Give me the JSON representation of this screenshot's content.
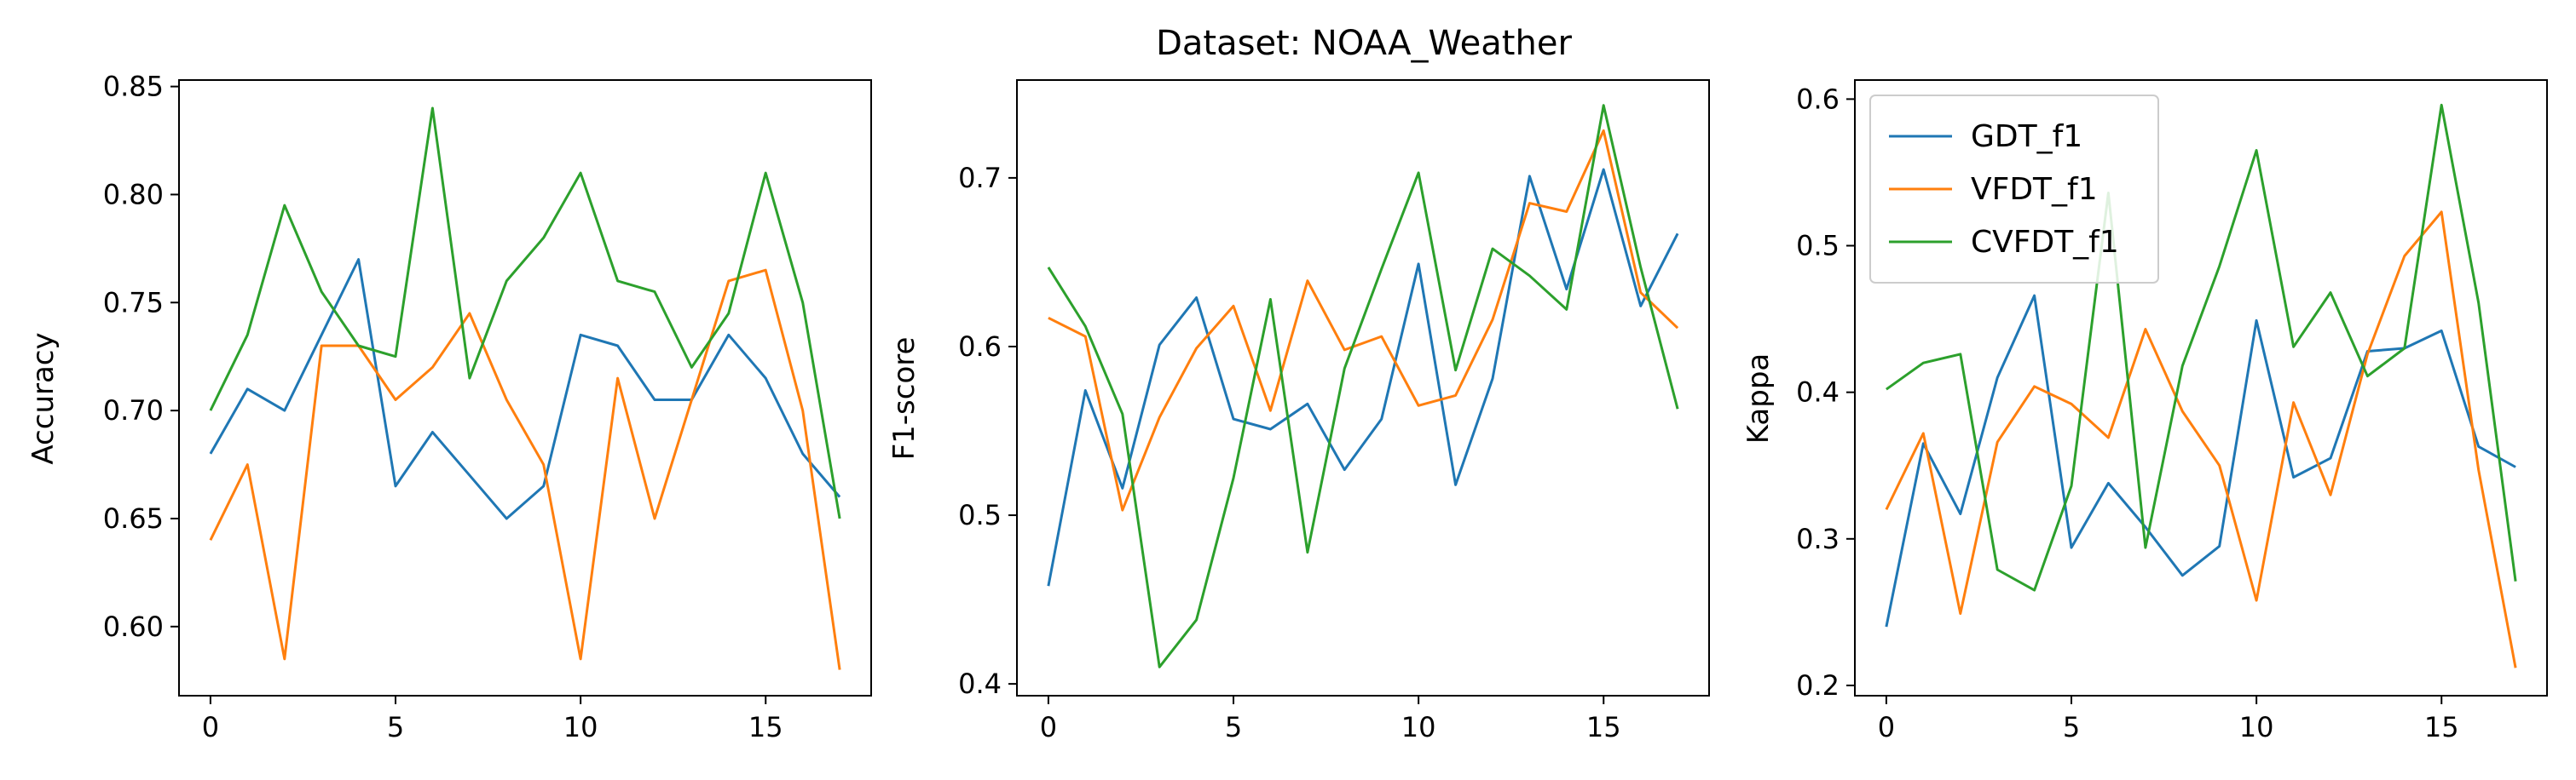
{
  "title": "Dataset: NOAA_Weather",
  "colors": {
    "GDT_f1": "#1f77b4",
    "VFDT_f1": "#ff7f0e",
    "CVFDT_f1": "#2ca02c"
  },
  "chart_data": [
    {
      "type": "line",
      "title": "",
      "xlabel": "",
      "ylabel": "Accuracy",
      "xlim": [
        -0.85,
        17.85
      ],
      "ylim": [
        0.568,
        0.853
      ],
      "xticks": [
        0,
        5,
        10,
        15
      ],
      "yticks": [
        0.6,
        0.65,
        0.7,
        0.75,
        0.8,
        0.85
      ],
      "ytick_labels": [
        "0.60",
        "0.65",
        "0.70",
        "0.75",
        "0.80",
        "0.85"
      ],
      "x": [
        0,
        1,
        2,
        3,
        4,
        5,
        6,
        7,
        8,
        9,
        10,
        11,
        12,
        13,
        14,
        15,
        16,
        17
      ],
      "series": [
        {
          "key": "GDT_f1",
          "values": [
            0.68,
            0.71,
            0.7,
            0.735,
            0.77,
            0.665,
            0.69,
            0.67,
            0.65,
            0.665,
            0.735,
            0.73,
            0.705,
            0.705,
            0.735,
            0.715,
            0.68,
            0.66
          ]
        },
        {
          "key": "VFDT_f1",
          "values": [
            0.64,
            0.675,
            0.585,
            0.73,
            0.73,
            0.705,
            0.72,
            0.745,
            0.705,
            0.675,
            0.585,
            0.715,
            0.65,
            0.705,
            0.76,
            0.765,
            0.7,
            0.58
          ]
        },
        {
          "key": "CVFDT_f1",
          "values": [
            0.7,
            0.735,
            0.795,
            0.755,
            0.73,
            0.725,
            0.84,
            0.715,
            0.76,
            0.78,
            0.81,
            0.76,
            0.755,
            0.72,
            0.745,
            0.81,
            0.75,
            0.65
          ]
        }
      ],
      "legend": null
    },
    {
      "type": "line",
      "title": "Dataset: NOAA_Weather",
      "xlabel": "",
      "ylabel": "F1-score",
      "xlim": [
        -0.85,
        17.85
      ],
      "ylim": [
        0.393,
        0.758
      ],
      "xticks": [
        0,
        5,
        10,
        15
      ],
      "yticks": [
        0.4,
        0.5,
        0.6,
        0.7
      ],
      "ytick_labels": [
        "0.4",
        "0.5",
        "0.6",
        "0.7"
      ],
      "x": [
        0,
        1,
        2,
        3,
        4,
        5,
        6,
        7,
        8,
        9,
        10,
        11,
        12,
        13,
        14,
        15,
        16,
        17
      ],
      "series": [
        {
          "key": "GDT_f1",
          "values": [
            0.458,
            0.574,
            0.516,
            0.601,
            0.629,
            0.557,
            0.551,
            0.566,
            0.527,
            0.557,
            0.649,
            0.518,
            0.581,
            0.701,
            0.634,
            0.705,
            0.624,
            0.667
          ]
        },
        {
          "key": "VFDT_f1",
          "values": [
            0.617,
            0.606,
            0.503,
            0.558,
            0.599,
            0.624,
            0.562,
            0.639,
            0.598,
            0.606,
            0.565,
            0.571,
            0.616,
            0.685,
            0.68,
            0.728,
            0.632,
            0.611
          ]
        },
        {
          "key": "CVFDT_f1",
          "values": [
            0.647,
            0.612,
            0.56,
            0.41,
            0.438,
            0.522,
            0.628,
            0.478,
            0.587,
            0.646,
            0.703,
            0.586,
            0.658,
            0.642,
            0.622,
            0.743,
            0.647,
            0.563
          ]
        }
      ],
      "legend": null
    },
    {
      "type": "line",
      "title": "",
      "xlabel": "",
      "ylabel": "Kappa",
      "xlim": [
        -0.85,
        17.85
      ],
      "ylim": [
        0.193,
        0.613
      ],
      "xticks": [
        0,
        5,
        10,
        15
      ],
      "yticks": [
        0.2,
        0.3,
        0.4,
        0.5,
        0.6
      ],
      "ytick_labels": [
        "0.2",
        "0.3",
        "0.4",
        "0.5",
        "0.6"
      ],
      "x": [
        0,
        1,
        2,
        3,
        4,
        5,
        6,
        7,
        8,
        9,
        10,
        11,
        12,
        13,
        14,
        15,
        16,
        17
      ],
      "series": [
        {
          "key": "GDT_f1",
          "values": [
            0.24,
            0.365,
            0.317,
            0.41,
            0.466,
            0.294,
            0.338,
            0.308,
            0.275,
            0.295,
            0.449,
            0.342,
            0.355,
            0.428,
            0.43,
            0.442,
            0.363,
            0.349
          ]
        },
        {
          "key": "VFDT_f1",
          "values": [
            0.32,
            0.372,
            0.249,
            0.366,
            0.404,
            0.392,
            0.369,
            0.443,
            0.387,
            0.35,
            0.258,
            0.393,
            0.33,
            0.426,
            0.493,
            0.523,
            0.347,
            0.212
          ]
        },
        {
          "key": "CVFDT_f1",
          "values": [
            0.402,
            0.42,
            0.426,
            0.279,
            0.265,
            0.336,
            0.536,
            0.294,
            0.418,
            0.486,
            0.565,
            0.431,
            0.468,
            0.411,
            0.43,
            0.596,
            0.461,
            0.271
          ]
        }
      ],
      "legend": {
        "placement": "upper-left",
        "entries": [
          "GDT_f1",
          "VFDT_f1",
          "CVFDT_f1"
        ]
      }
    }
  ]
}
